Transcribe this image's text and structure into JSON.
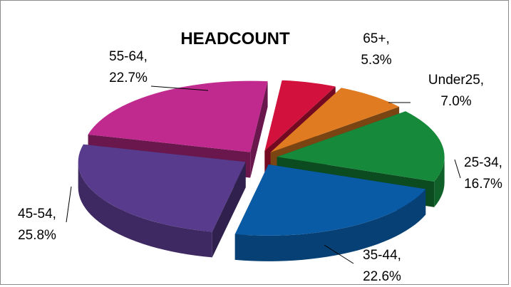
{
  "chart_data": {
    "type": "pie",
    "title": "HEADCOUNT",
    "categories": [
      "Under25",
      "25-34",
      "35-44",
      "45-54",
      "55-64",
      "65+"
    ],
    "values": [
      7.0,
      16.7,
      22.6,
      25.8,
      22.7,
      5.3
    ],
    "value_labels": [
      "7.0%",
      "16.7%",
      "22.6%",
      "25.8%",
      "22.7%",
      "5.3%"
    ],
    "label_separator": ",",
    "colors": [
      "#e07b22",
      "#16893a",
      "#0a5ba6",
      "#583b8c",
      "#c02a8e",
      "#d2123c"
    ],
    "legend": false
  }
}
